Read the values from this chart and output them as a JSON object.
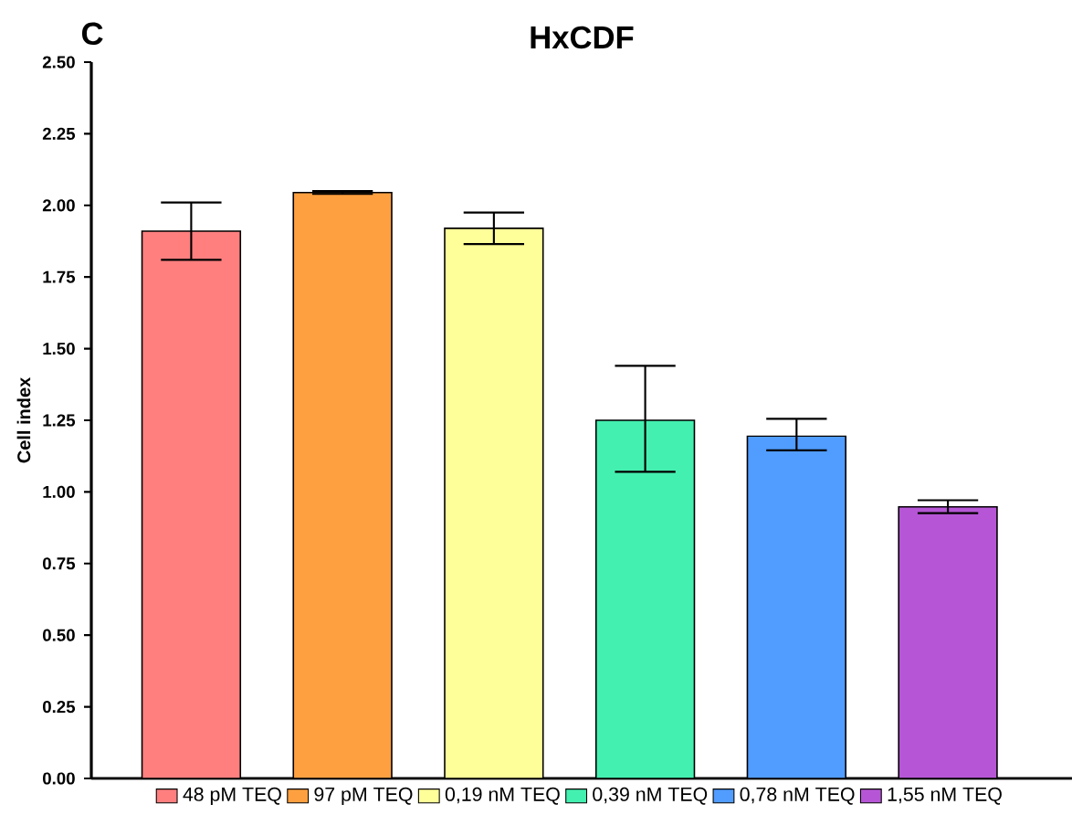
{
  "chart_data": {
    "type": "bar",
    "title": "HxCDF",
    "ylabel": "Cell index",
    "annotations": [
      "C"
    ],
    "categories": [
      null,
      null,
      null,
      null,
      null,
      null
    ],
    "series": [
      {
        "name": "48 pM TEQ",
        "color": "#ff7f7f",
        "values": [
          1.91,
          null,
          null,
          null,
          null,
          null
        ],
        "errors": [
          [
            1.81,
            2.01
          ],
          null,
          null,
          null,
          null,
          null
        ]
      },
      {
        "name": "97 pM TEQ",
        "color": "#ffa040",
        "values": [
          null,
          2.045,
          null,
          null,
          null,
          null
        ],
        "errors": [
          null,
          [
            2.04,
            2.05
          ],
          null,
          null,
          null,
          null
        ]
      },
      {
        "name": "0,19 nM TEQ",
        "color": "#ffff99",
        "values": [
          null,
          null,
          1.92,
          null,
          null,
          null
        ],
        "errors": [
          null,
          null,
          [
            1.865,
            1.975
          ],
          null,
          null,
          null
        ]
      },
      {
        "name": "0,39 nM TEQ",
        "color": "#44f0b0",
        "values": [
          null,
          null,
          null,
          1.25,
          null,
          null
        ],
        "errors": [
          null,
          null,
          null,
          [
            1.07,
            1.44
          ],
          null,
          null
        ]
      },
      {
        "name": "0,78 nM TEQ",
        "color": "#509cff",
        "values": [
          null,
          null,
          null,
          null,
          1.195,
          null
        ],
        "errors": [
          null,
          null,
          null,
          null,
          [
            1.145,
            1.255
          ],
          null
        ]
      },
      {
        "name": "1,55 nM TEQ",
        "color": "#b656d6",
        "values": [
          null,
          null,
          null,
          null,
          null,
          0.948
        ],
        "errors": [
          null,
          null,
          null,
          null,
          null,
          [
            0.926,
            0.971
          ]
        ]
      }
    ],
    "ylim": [
      0,
      2.5
    ],
    "yticks": [
      {
        "value": 0,
        "label": "0.00"
      },
      {
        "value": 0.25,
        "label": "0.25"
      },
      {
        "value": 0.5,
        "label": "0.50"
      },
      {
        "value": 0.75,
        "label": "0.75"
      },
      {
        "value": 1,
        "label": "1.00"
      },
      {
        "value": 1.25,
        "label": "1.25"
      },
      {
        "value": 1.5,
        "label": "1.50"
      },
      {
        "value": 1.75,
        "label": "1.75"
      },
      {
        "value": 2,
        "label": "2.00"
      },
      {
        "value": 2.25,
        "label": "2.25"
      },
      {
        "value": 2.5,
        "label": "2.50"
      }
    ],
    "grid": false,
    "legend": "bottom"
  }
}
